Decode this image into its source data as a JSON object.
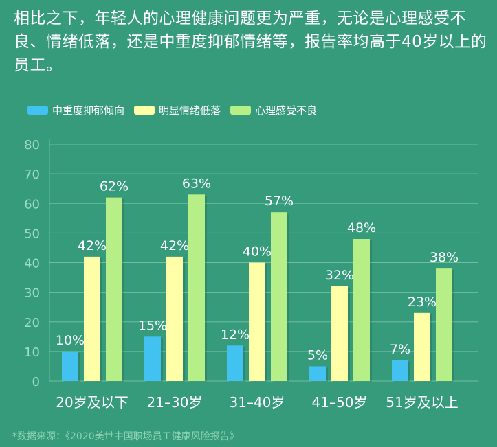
{
  "headline": "相比之下，年轻人的心理健康问题更为严重，无论是心理感受不良、情绪低落，还是中重度抑郁情绪等，报告率均高于40岁以上的员工。",
  "source": "*数据来源：《2020美世中国职场员工健康风险报告》",
  "colors": {
    "background": "#369b7b",
    "grid": "#6cc09d",
    "axis_text": "#9fdcc0",
    "blue": "#41c2f0",
    "yellow": "#ffffa8",
    "green": "#b6ef88"
  },
  "legend": [
    {
      "name": "中重度抑郁倾向",
      "color": "#41c2f0"
    },
    {
      "name": "明显情绪低落",
      "color": "#ffffa8"
    },
    {
      "name": "心理感受不良",
      "color": "#b6ef88"
    }
  ],
  "chart_data": {
    "type": "bar",
    "categories": [
      "20岁及以下",
      "21–30岁",
      "31–40岁",
      "41–50岁",
      "51岁及以上"
    ],
    "series": [
      {
        "name": "中重度抑郁倾向",
        "values": [
          10,
          15,
          12,
          5,
          7
        ],
        "labels": [
          "10%",
          "15%",
          "12%",
          "5%",
          "7%"
        ]
      },
      {
        "name": "明显情绪低落",
        "values": [
          42,
          42,
          40,
          32,
          23
        ],
        "labels": [
          "42%",
          "42%",
          "40%",
          "32%",
          "23%"
        ]
      },
      {
        "name": "心理感受不良",
        "values": [
          62,
          63,
          57,
          48,
          38
        ],
        "labels": [
          "62%",
          "63%",
          "57%",
          "48%",
          "38%"
        ]
      }
    ],
    "ylim": [
      0,
      80
    ],
    "yticks": [
      0,
      10,
      20,
      30,
      40,
      50,
      60,
      70,
      80
    ],
    "grid": true,
    "legend_position": "top-left"
  }
}
